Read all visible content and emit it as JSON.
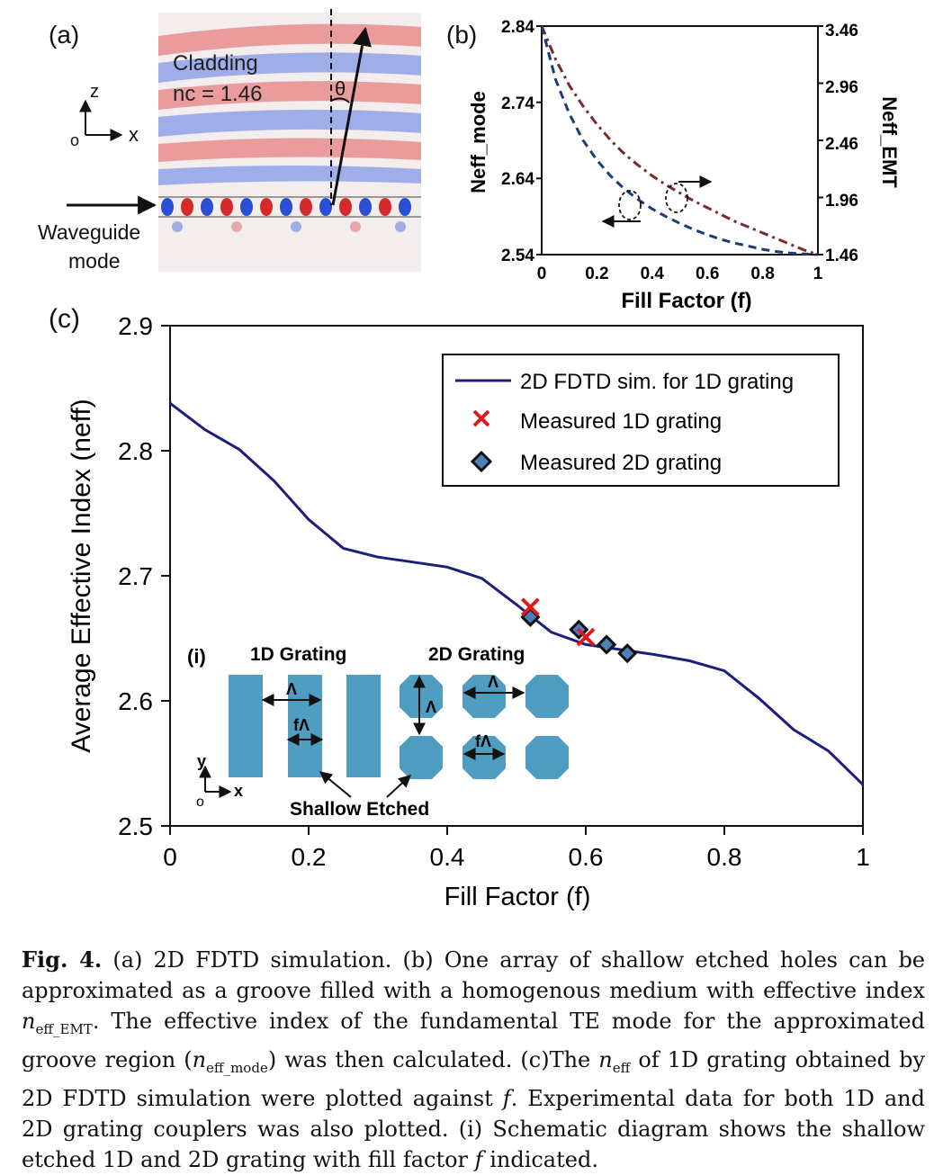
{
  "panels": {
    "a": {
      "label": "(a)",
      "cladding_line1": "Cladding",
      "cladding_line2": "nᴄ = 1.46",
      "theta": "θ",
      "axis_z": "z",
      "axis_x": "x",
      "axis_o": "o",
      "waveguide_line1": "Waveguide",
      "waveguide_line2": "mode"
    },
    "b": {
      "label": "(b)",
      "ylabel_left": "Neff_mode",
      "ylabel_right": "Neff_EMT",
      "xlabel": "Fill Factor (f)",
      "xticks": [
        "0",
        "0.2",
        "0.4",
        "0.6",
        "0.8",
        "1"
      ],
      "yticks_left": [
        "2.84",
        "2.74",
        "2.64",
        "2.54"
      ],
      "yticks_right": [
        "3.46",
        "2.96",
        "2.46",
        "1.96",
        "1.46"
      ]
    },
    "c": {
      "label": "(c)",
      "xlabel": "Fill Factor (f)",
      "ylabel": "Average Effective Index (neff)",
      "xticks": [
        "0",
        "0.2",
        "0.4",
        "0.6",
        "0.8",
        "1"
      ],
      "yticks": [
        "2.9",
        "2.8",
        "2.7",
        "2.6",
        "2.5"
      ],
      "legend": [
        "2D FDTD sim. for 1D grating",
        "Measured 1D grating",
        "Measured 2D grating"
      ]
    },
    "inset": {
      "label": "(i)",
      "title_1d": "1D Grating",
      "title_2d": "2D Grating",
      "lambda": "Λ",
      "f_lambda": "fΛ",
      "shallow": "Shallow Etched",
      "axis_y": "y",
      "axis_x": "x",
      "axis_o": "o"
    }
  },
  "colors": {
    "sim_line": "#1b1f7a",
    "measured_1d": "#e01a1a",
    "measured_2d": "#4f7fb8",
    "inset_fill": "#4f9dc0",
    "emt_curve": "#7a2a2a",
    "mode_curve": "#1c3a78"
  },
  "caption": {
    "lead": "Fig. 4.",
    "p1": " (a) 2D FDTD simulation. (b) One array of shallow etched holes can be approximated as a groove filled with a homogenous medium with effective index ",
    "n1": "n",
    "s1": "eff_EMT",
    "p2": ". The effective index of the fundamental TE mode for the approximated groove region (",
    "n2": "n",
    "s2": "eff_mode",
    "p3": ") was then calculated. (c)The ",
    "n3": "n",
    "s3": "eff",
    "p4": " of 1D grating obtained by 2D FDTD simulation were plotted against ",
    "f1": "f",
    "p5": ". Experimental data for both 1D and 2D grating couplers was also plotted. (i) Schematic diagram shows the shallow etched 1D and 2D grating with fill factor ",
    "f2": "f",
    "p6": " indicated."
  },
  "chart_data": [
    {
      "panel": "b",
      "type": "line",
      "xlabel": "Fill Factor (f)",
      "ylabel": "Neff_mode",
      "ylabel_right": "Neff_EMT",
      "xlim": [
        0,
        1
      ],
      "ylim": [
        2.54,
        2.84
      ],
      "ylim_right": [
        1.46,
        3.46
      ],
      "series": [
        {
          "axis": "left",
          "x": [
            0,
            0.05,
            0.1,
            0.15,
            0.2,
            0.25,
            0.3,
            0.35,
            0.4,
            0.45,
            0.5,
            0.55,
            0.6,
            0.65,
            0.7,
            0.75,
            0.8,
            0.85,
            0.9,
            0.95,
            1.0
          ],
          "values": [
            2.84,
            2.77,
            2.725,
            2.69,
            2.664,
            2.643,
            2.626,
            2.612,
            2.6,
            2.59,
            2.581,
            2.573,
            2.566,
            2.56,
            2.555,
            2.551,
            2.547,
            2.544,
            2.542,
            2.541,
            2.54
          ]
        },
        {
          "axis": "right",
          "x": [
            0,
            0.05,
            0.1,
            0.15,
            0.2,
            0.25,
            0.3,
            0.35,
            0.4,
            0.45,
            0.5,
            0.55,
            0.6,
            0.65,
            0.7,
            0.75,
            0.8,
            0.85,
            0.9,
            0.95,
            1.0
          ],
          "values": [
            3.46,
            3.17,
            2.94,
            2.76,
            2.6,
            2.46,
            2.34,
            2.24,
            2.15,
            2.07,
            2.0,
            1.93,
            1.87,
            1.81,
            1.75,
            1.7,
            1.65,
            1.6,
            1.55,
            1.5,
            1.46
          ]
        }
      ]
    },
    {
      "panel": "c",
      "type": "line",
      "xlabel": "Fill Factor (f)",
      "ylabel": "Average Effective Index (neff)",
      "xlim": [
        0,
        1
      ],
      "ylim": [
        2.5,
        2.9
      ],
      "legend_position": "top-right",
      "series": [
        {
          "name": "2D FDTD sim. for 1D grating",
          "x": [
            0,
            0.05,
            0.1,
            0.15,
            0.2,
            0.25,
            0.3,
            0.35,
            0.4,
            0.45,
            0.5,
            0.55,
            0.6,
            0.65,
            0.7,
            0.75,
            0.8,
            0.85,
            0.9,
            0.95,
            1.0
          ],
          "values": [
            2.838,
            2.817,
            2.801,
            2.776,
            2.745,
            2.722,
            2.715,
            2.711,
            2.707,
            2.698,
            2.677,
            2.655,
            2.645,
            2.641,
            2.637,
            2.632,
            2.624,
            2.602,
            2.577,
            2.56,
            2.533
          ]
        },
        {
          "name": "Measured 1D grating",
          "x": [
            0.52,
            0.6
          ],
          "values": [
            2.675,
            2.651
          ]
        },
        {
          "name": "Measured 2D grating",
          "x": [
            0.52,
            0.59,
            0.63,
            0.66
          ],
          "values": [
            2.667,
            2.657,
            2.645,
            2.638
          ]
        }
      ]
    }
  ]
}
